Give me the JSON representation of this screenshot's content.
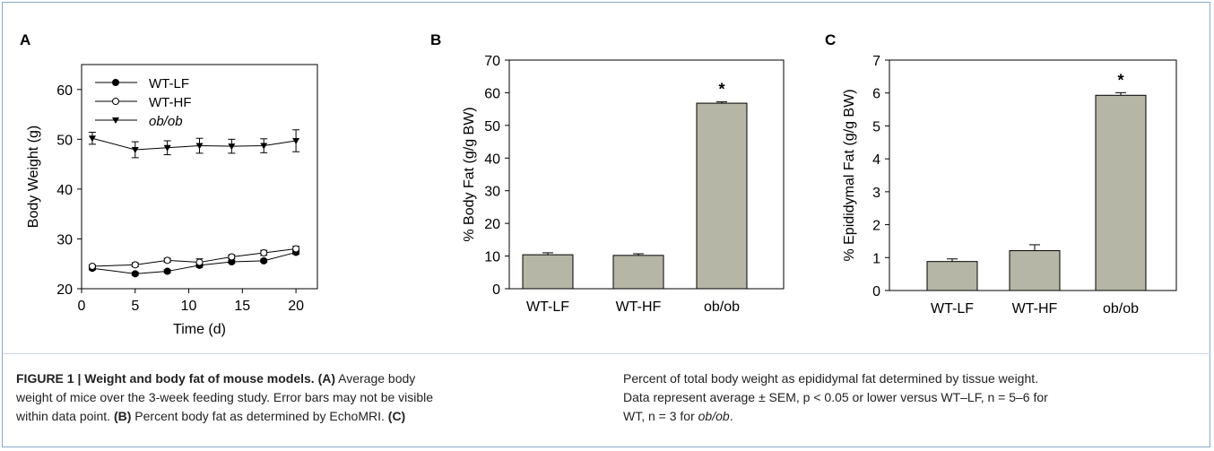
{
  "panels": [
    "A",
    "B",
    "C"
  ],
  "chart_data": [
    {
      "type": "line",
      "panel": "A",
      "xlabel": "Time (d)",
      "ylabel": "Body Weight (g)",
      "xlim": [
        0,
        22
      ],
      "ylim": [
        20,
        65
      ],
      "xticks": [
        0,
        5,
        10,
        15,
        20
      ],
      "yticks": [
        20,
        30,
        40,
        50,
        60
      ],
      "legend_position": "top-left",
      "series": [
        {
          "name": "WT-LF",
          "marker": "filled-circle",
          "x": [
            1,
            5,
            8,
            11,
            14,
            17,
            20
          ],
          "y": [
            24.1,
            23.0,
            23.5,
            24.7,
            25.4,
            25.6,
            27.3
          ],
          "err": [
            0.3,
            0.3,
            0.3,
            0.4,
            0.3,
            0.3,
            0.4
          ]
        },
        {
          "name": "WT-HF",
          "marker": "open-circle",
          "x": [
            1,
            5,
            8,
            11,
            14,
            17,
            20
          ],
          "y": [
            24.5,
            24.8,
            25.7,
            25.3,
            26.4,
            27.2,
            28.0
          ],
          "err": [
            0.3,
            0.4,
            0.4,
            0.7,
            0.4,
            0.5,
            0.5
          ]
        },
        {
          "name": "ob/ob",
          "marker": "filled-triangle-down",
          "x": [
            1,
            5,
            8,
            11,
            14,
            17,
            20
          ],
          "y": [
            50.2,
            47.9,
            48.3,
            48.7,
            48.6,
            48.7,
            49.7
          ],
          "err": [
            1.2,
            1.6,
            1.4,
            1.5,
            1.4,
            1.4,
            2.2
          ]
        }
      ]
    },
    {
      "type": "bar",
      "panel": "B",
      "ylabel": "% Body Fat (g/g BW)",
      "ylim": [
        0,
        70
      ],
      "yticks": [
        0,
        10,
        20,
        30,
        40,
        50,
        60,
        70
      ],
      "categories": [
        "WT-LF",
        "WT-HF",
        "ob/ob"
      ],
      "values": [
        10.4,
        10.2,
        56.8
      ],
      "err": [
        0.6,
        0.5,
        0.4
      ],
      "annotations": [
        "",
        "",
        "*"
      ]
    },
    {
      "type": "bar",
      "panel": "C",
      "ylabel": "% Epididymal Fat (g/g BW)",
      "ylim": [
        0,
        7
      ],
      "yticks": [
        0,
        1,
        2,
        3,
        4,
        5,
        6,
        7
      ],
      "categories": [
        "WT-LF",
        "WT-HF",
        "ob/ob"
      ],
      "values": [
        0.88,
        1.21,
        5.93
      ],
      "err": [
        0.08,
        0.18,
        0.08
      ],
      "annotations": [
        "",
        "",
        "*"
      ]
    }
  ],
  "caption": {
    "label": "FIGURE 1 | Weight and body fat of mouse models.",
    "a_tag": "(A)",
    "a_text_1": " Average body",
    "a_text_2": "weight of mice over the 3-week feeding study. Error bars may not be visible",
    "b_pre": "within data point. ",
    "b_tag": "(B)",
    "b_text": " Percent body fat as determined by EchoMRI. ",
    "c_tag": "(C)",
    "right_1": "Percent of total body weight as epididymal fat determined by tissue weight.",
    "right_2": "Data represent average ± SEM, p < 0.05 or lower versus WT–LF, n = 5–6 for",
    "right_3a": "WT, n = 3 for ",
    "right_3b": "ob/ob",
    "right_3c": "."
  }
}
